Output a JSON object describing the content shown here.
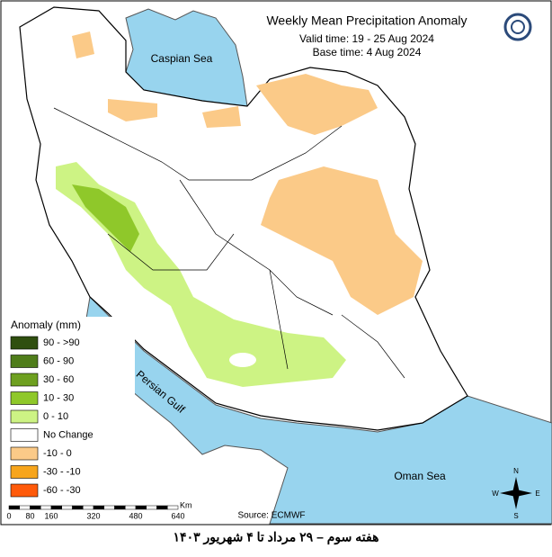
{
  "header": {
    "title": "Weekly Mean Precipitation Anomaly",
    "valid_time": "Valid time: 19 - 25 Aug 2024",
    "base_time": "Base time: 4 Aug 2024"
  },
  "seas": {
    "caspian": "Caspian Sea",
    "persian_gulf": "Persian Gulf",
    "oman": "Oman Sea"
  },
  "legend": {
    "title": "Anomaly (mm)",
    "items": [
      {
        "label": "90 - >90",
        "color": "#2f4f0f"
      },
      {
        "label": "60 - 90",
        "color": "#4f7d1a"
      },
      {
        "label": "30 - 60",
        "color": "#6ea020"
      },
      {
        "label": "10 - 30",
        "color": "#8fc82a"
      },
      {
        "label": "0 - 10",
        "color": "#cdf384"
      },
      {
        "label": "No Change",
        "color": "#ffffff"
      },
      {
        "label": "-10 - 0",
        "color": "#fbca88"
      },
      {
        "label": "-30 - -10",
        "color": "#f7a51c"
      },
      {
        "label": "-60 - -30",
        "color": "#ff5a0a"
      }
    ]
  },
  "scale": {
    "unit": "Km",
    "labels": [
      0,
      80,
      160,
      320,
      480,
      640
    ]
  },
  "source": "Source: ECMWF",
  "compass": {
    "n": "N",
    "e": "E",
    "s": "S",
    "w": "W"
  },
  "caption": "هفته سوم – ۲۹ مرداد تا ۴ شهریور ۱۴۰۳"
}
